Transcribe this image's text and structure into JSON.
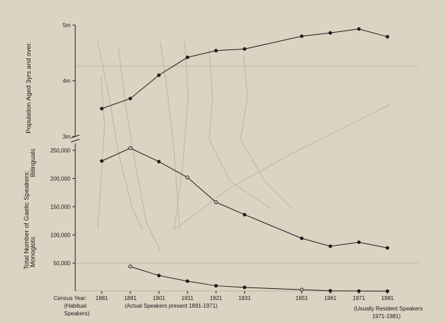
{
  "chart_data": [
    {
      "type": "line",
      "ylabel": "Population Aged 3yrs and over.",
      "yticks": [
        "5m",
        "4m",
        "3m"
      ],
      "ylim": [
        3000000,
        5000000
      ],
      "series": [
        {
          "x": [
            1881,
            1891,
            1901,
            1911,
            1921,
            1931,
            1951,
            1961,
            1971,
            1981
          ],
          "values": [
            3500000,
            3680000,
            4100000,
            4420000,
            4540000,
            4570000,
            4800000,
            4860000,
            4930000,
            4790000
          ]
        }
      ]
    },
    {
      "type": "line",
      "ylabel": "Total Number of Gaelic Speakers:",
      "series_labels": [
        "Bilinguals",
        "Monoglots"
      ],
      "yticks": [
        "250,000",
        "200,000",
        "150,000",
        "100,000",
        "50,000"
      ],
      "ylim": [
        0,
        270000
      ],
      "series": [
        {
          "x": [
            1881,
            1891,
            1901,
            1911,
            1921,
            1931,
            1951,
            1961,
            1971,
            1981
          ],
          "values": [
            231000,
            254000,
            230000,
            202000,
            158000,
            136000,
            94000,
            80000,
            87000,
            77000
          ]
        },
        {
          "x": [
            1891,
            1901,
            1911,
            1921,
            1931,
            1951,
            1961,
            1971,
            1981
          ],
          "values": [
            44000,
            28000,
            18000,
            9800,
            6900,
            3000,
            1000,
            500,
            300
          ]
        }
      ]
    }
  ],
  "xaxis": {
    "label": "Census Year:",
    "ticks": [
      "1881",
      "1891",
      "1901",
      "1911",
      "1921",
      "1931",
      "1951",
      "1961",
      "1971",
      "1981"
    ],
    "tick_values": [
      1881,
      1891,
      1901,
      1911,
      1921,
      1931,
      1951,
      1961,
      1971,
      1981
    ],
    "notes": [
      {
        "lines": [
          "(Habitual",
          "Speakers)"
        ]
      },
      {
        "lines": [
          "(Actual Speakers present 1891-1971)"
        ]
      },
      {
        "lines": [
          "(Usually Resident Speakers",
          "1971-1981)"
        ]
      }
    ]
  },
  "colors": {
    "background": "#dcd3c2",
    "ink": "#1a1a1a",
    "bleed": "#bcb3a2"
  }
}
